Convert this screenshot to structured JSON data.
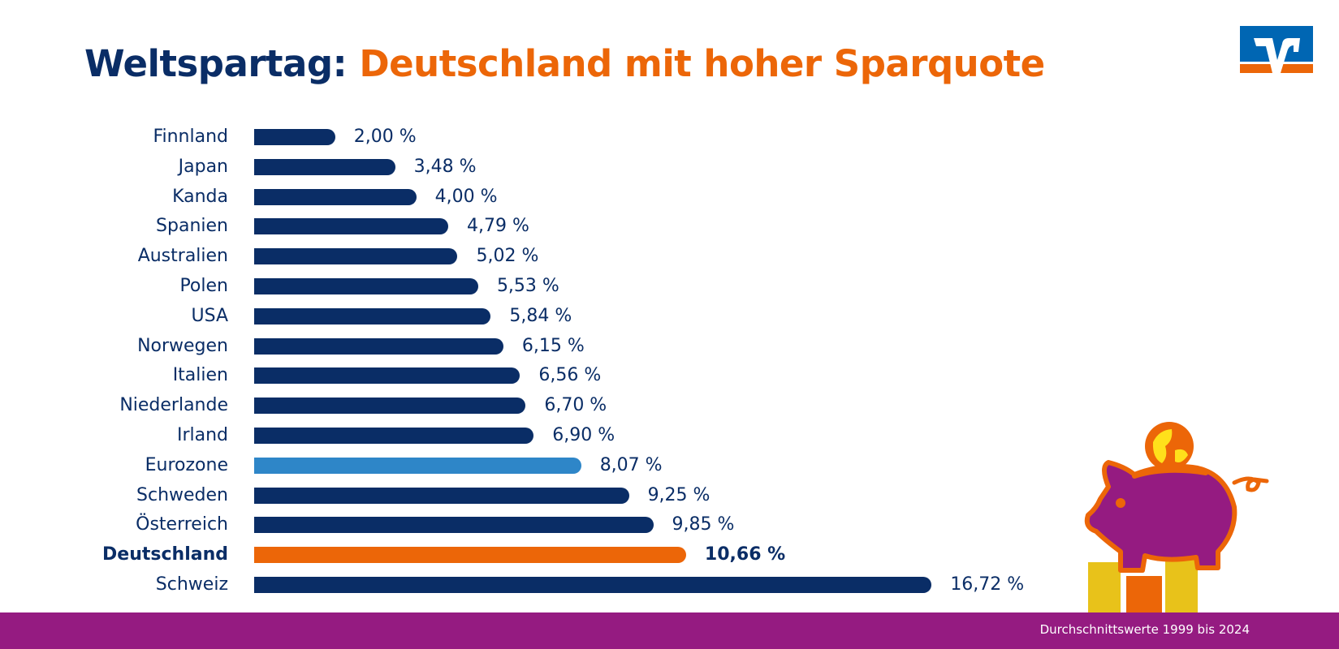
{
  "title": {
    "part1": "Weltspartag:",
    "part2": "Deutschland mit hoher Sparquote"
  },
  "footer": {
    "note": "Durchschnittswerte 1999 bis 2024"
  },
  "colors": {
    "default": "#0a2d66",
    "eurozone": "#2e86c8",
    "highlight": "#ec6608",
    "footer": "#951b81"
  },
  "icons": {
    "logo": "volksbank-logo",
    "illustration": "piggy-bank-globe-coins"
  },
  "chart_data": {
    "type": "bar",
    "orientation": "horizontal",
    "title": "Weltspartag: Deutschland mit hoher Sparquote",
    "unit": "%",
    "grid": false,
    "categories": [
      "Finnland",
      "Japan",
      "Kanda",
      "Spanien",
      "Australien",
      "Polen",
      "USA",
      "Norwegen",
      "Italien",
      "Niederlande",
      "Irland",
      "Eurozone",
      "Schweden",
      "Österreich",
      "Deutschland",
      "Schweiz"
    ],
    "values": [
      2.0,
      3.48,
      4.0,
      4.79,
      5.02,
      5.53,
      5.84,
      6.15,
      6.56,
      6.7,
      6.9,
      8.07,
      9.25,
      9.85,
      10.66,
      16.72
    ],
    "labels": [
      "2,00 %",
      "3,48 %",
      "4,00 %",
      "4,79 %",
      "5,02 %",
      "5,53 %",
      "5,84 %",
      "6,15 %",
      "6,56 %",
      "6,70 %",
      "6,90 %",
      "8,07 %",
      "9,25 %",
      "9,85 %",
      "10,66 %",
      "16,72 %"
    ],
    "highlight": "Deutschland",
    "reference": "Eurozone",
    "xlim": [
      0,
      17
    ]
  }
}
